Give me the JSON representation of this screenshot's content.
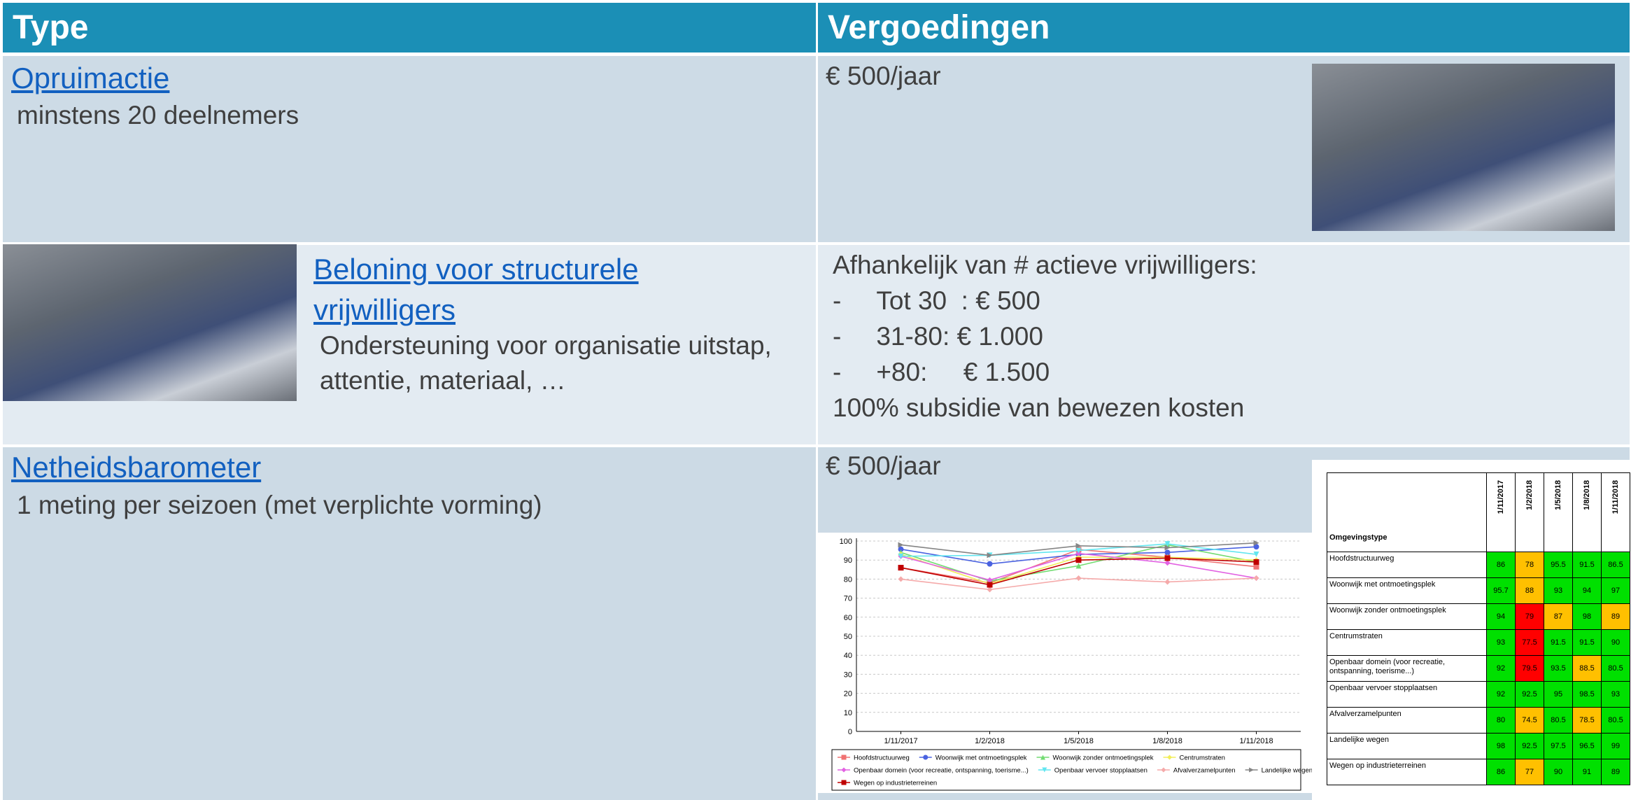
{
  "header": {
    "type": "Type",
    "fees": "Vergoedingen"
  },
  "rows": [
    {
      "title": "Opruimactie",
      "subtitle": "minstens 20 deelnemers",
      "fee": "€ 500/jaar"
    },
    {
      "title": "Beloning voor structurele vrijwilligers",
      "subtitle": "Ondersteuning voor organisatie uitstap, attentie, materiaal, …",
      "fee": {
        "intro": "Afhankelijk van # actieve vrijwilligers:",
        "bullet": "-",
        "items": [
          "Tot 30  : € 500",
          "31-80: € 1.000",
          "+80:     € 1.500"
        ],
        "note": "100% subsidie van bewezen kosten"
      }
    },
    {
      "title": "Netheidsbarometer",
      "subtitle": "1 meting per seizoen (met verplichte vorming)",
      "fee": "€ 500/jaar"
    }
  ],
  "chart_data": {
    "type": "line",
    "categories": [
      "1/11/2017",
      "1/2/2018",
      "1/5/2018",
      "1/8/2018",
      "1/11/2018"
    ],
    "ylim": [
      0,
      100
    ],
    "yticks": [
      0,
      10,
      20,
      30,
      40,
      50,
      60,
      70,
      80,
      90,
      100
    ],
    "grid": true,
    "legend": "bottom",
    "series": [
      {
        "name": "Hoofdstructuurweg",
        "color": "#f07272",
        "marker": "square",
        "values": [
          86,
          78,
          95.5,
          91.5,
          86.5
        ]
      },
      {
        "name": "Woonwijk met ontmoetingsplek",
        "color": "#4a62e0",
        "marker": "circle",
        "values": [
          95.7,
          88,
          93,
          94,
          97
        ]
      },
      {
        "name": "Woonwijk zonder ontmoetingsplek",
        "color": "#72dc72",
        "marker": "triangle",
        "values": [
          94,
          79,
          87,
          98,
          89
        ]
      },
      {
        "name": "Centrumstraten",
        "color": "#f2ee5a",
        "marker": "diamond",
        "values": [
          93,
          77.5,
          91.5,
          91.5,
          90
        ]
      },
      {
        "name": "Openbaar domein (voor recreatie, ontspanning, toerisme...)",
        "color": "#e262e2",
        "marker": "diamond",
        "values": [
          92,
          79.5,
          93.5,
          88.5,
          80.5
        ]
      },
      {
        "name": "Openbaar vervoer stopplaatsen",
        "color": "#62e6f0",
        "marker": "triangle-down",
        "values": [
          92,
          92.5,
          95,
          98.5,
          93
        ]
      },
      {
        "name": "Afvalverzamelpunten",
        "color": "#f5aaaa",
        "marker": "diamond",
        "values": [
          80,
          74.5,
          80.5,
          78.5,
          80.5
        ]
      },
      {
        "name": "Landelijke wegen",
        "color": "#858585",
        "marker": "triangle-right",
        "values": [
          98,
          92.5,
          97.5,
          96.5,
          99
        ]
      },
      {
        "name": "Wegen op industrieterreinen",
        "color": "#c00000",
        "marker": "square",
        "values": [
          86,
          77,
          90,
          91,
          89
        ]
      }
    ]
  },
  "score_table": {
    "header": "Omgevingstype",
    "columns": [
      "1/11/2017",
      "1/2/2018",
      "1/5/2018",
      "1/8/2018",
      "1/11/2018"
    ],
    "rows": [
      {
        "label": "Hoofdstructuurweg",
        "values": [
          86,
          78,
          95.5,
          91.5,
          86.5
        ],
        "colors": [
          "#00e000",
          "#ffc000",
          "#00e000",
          "#00e000",
          "#00e000"
        ]
      },
      {
        "label": "Woonwijk met ontmoetingsplek",
        "values": [
          95.7,
          88,
          93,
          94,
          97
        ],
        "colors": [
          "#00e000",
          "#ffc000",
          "#00e000",
          "#00e000",
          "#00e000"
        ]
      },
      {
        "label": "Woonwijk zonder ontmoetingsplek",
        "values": [
          94,
          79,
          87,
          98,
          89
        ],
        "colors": [
          "#00e000",
          "#ff0000",
          "#ffc000",
          "#00e000",
          "#ffc000"
        ]
      },
      {
        "label": "Centrumstraten",
        "values": [
          93,
          77.5,
          91.5,
          91.5,
          90
        ],
        "colors": [
          "#00e000",
          "#ff0000",
          "#00e000",
          "#00e000",
          "#00e000"
        ]
      },
      {
        "label": "Openbaar domein (voor recreatie, ontspanning, toerisme...)",
        "values": [
          92,
          79.5,
          93.5,
          88.5,
          80.5
        ],
        "colors": [
          "#00e000",
          "#ff0000",
          "#00e000",
          "#ffc000",
          "#00e000"
        ]
      },
      {
        "label": "Openbaar vervoer stopplaatsen",
        "values": [
          92,
          92.5,
          95,
          98.5,
          93
        ],
        "colors": [
          "#00e000",
          "#00e000",
          "#00e000",
          "#00e000",
          "#00e000"
        ]
      },
      {
        "label": "Afvalverzamelpunten",
        "values": [
          80,
          74.5,
          80.5,
          78.5,
          80.5
        ],
        "colors": [
          "#00e000",
          "#ffc000",
          "#00e000",
          "#ffc000",
          "#00e000"
        ]
      },
      {
        "label": "Landelijke wegen",
        "values": [
          98,
          92.5,
          97.5,
          96.5,
          99
        ],
        "colors": [
          "#00e000",
          "#00e000",
          "#00e000",
          "#00e000",
          "#00e000"
        ]
      },
      {
        "label": "Wegen op industrieterreinen",
        "values": [
          86,
          77,
          90,
          91,
          89
        ],
        "colors": [
          "#00e000",
          "#ffc000",
          "#00e000",
          "#00e000",
          "#00e000"
        ]
      }
    ]
  }
}
